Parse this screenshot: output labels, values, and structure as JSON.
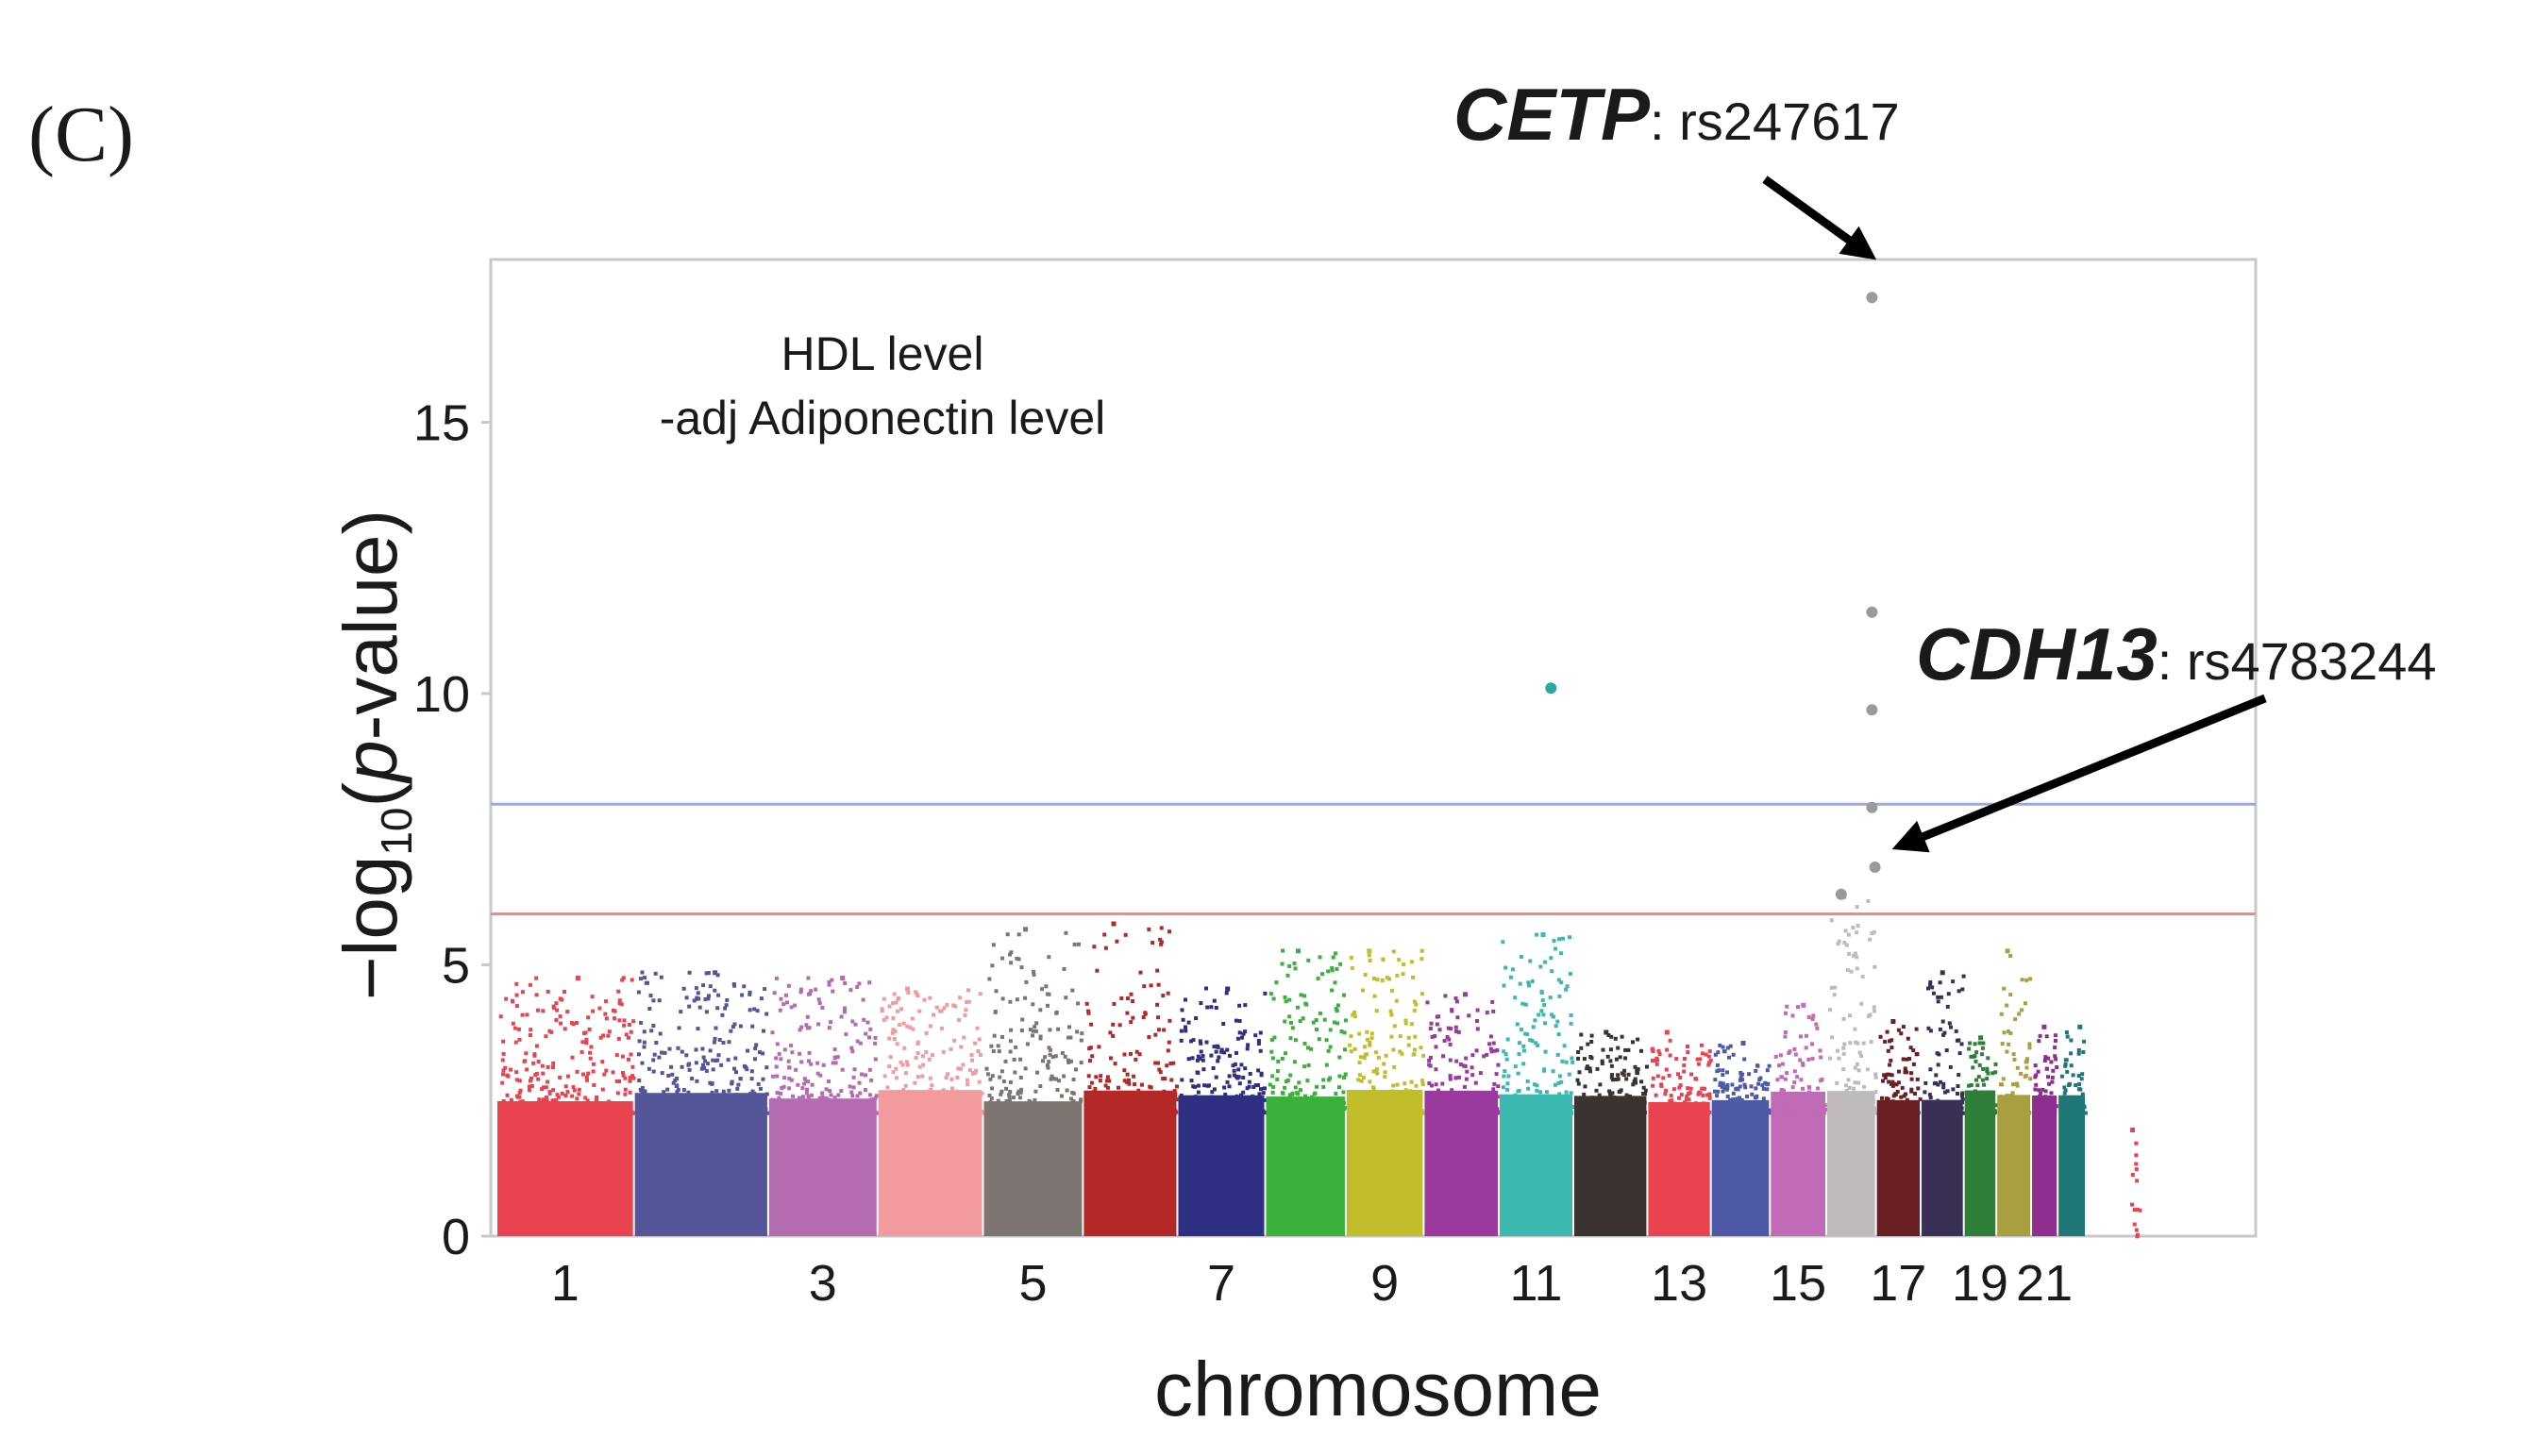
{
  "panel_label": "(C)",
  "colors": {
    "frame": "#c8c8c8",
    "threshold_genome_wide": "#9aa8e8",
    "threshold_suggestive": "#f08a8a",
    "arrow": "#000000",
    "chromosomes": [
      "#e8434f",
      "#555599",
      "#b56bb0",
      "#f39a9f",
      "#7c7571",
      "#b52828",
      "#2e2e82",
      "#3bb13b",
      "#c2bd2a",
      "#9a3a9e",
      "#3bb8b0",
      "#3a3330",
      "#e8434f",
      "#4e5aa8",
      "#c06ab8",
      "#c0bbbb",
      "#6a1f25",
      "#3a2f55",
      "#2e7f3a",
      "#a8a040",
      "#8e2f8f",
      "#1f7777"
    ]
  },
  "chart_data": {
    "type": "scatter",
    "subtype": "manhattan",
    "annotation": [
      "HDL level",
      "-adj Adiponectin level"
    ],
    "xlabel": "chromosome",
    "ylabel_parts": {
      "pre": "−log",
      "sub": "10",
      "mid": "(",
      "italic": "p",
      "post": "-value)"
    },
    "ylim": [
      0,
      18
    ],
    "yticks": [
      0,
      5,
      10,
      15
    ],
    "xtick_labels": [
      {
        "label": "1",
        "chrom": 1
      },
      {
        "label": "3",
        "chrom": 3
      },
      {
        "label": "5",
        "chrom": 5
      },
      {
        "label": "7",
        "chrom": 7
      },
      {
        "label": "9",
        "chrom": 9
      },
      {
        "label": "11",
        "chrom": 11
      },
      {
        "label": "13",
        "chrom": 13
      },
      {
        "label": "15",
        "chrom": 15
      },
      {
        "label": "17",
        "chrom": 17
      },
      {
        "label": "19",
        "chrom": 19
      },
      {
        "label": "21",
        "chrom": 21
      }
    ],
    "chromosome_lengths": [
      249,
      243,
      198,
      191,
      181,
      171,
      159,
      146,
      141,
      136,
      135,
      134,
      115,
      107,
      102,
      90,
      81,
      78,
      59,
      63,
      48,
      51
    ],
    "extra_segment": {
      "name": "X",
      "length": 155,
      "gap_before": 12,
      "max_y": 2.0
    },
    "thresholds": [
      7.96,
      5.94
    ],
    "chromosome_peaks": [
      {
        "chrom": 1,
        "max_y": 4.8
      },
      {
        "chrom": 2,
        "max_y": 4.9
      },
      {
        "chrom": 3,
        "max_y": 4.8
      },
      {
        "chrom": 4,
        "max_y": 4.6
      },
      {
        "chrom": 5,
        "max_y": 5.7
      },
      {
        "chrom": 6,
        "max_y": 5.8
      },
      {
        "chrom": 7,
        "max_y": 4.6
      },
      {
        "chrom": 8,
        "max_y": 5.3
      },
      {
        "chrom": 9,
        "max_y": 5.3
      },
      {
        "chrom": 10,
        "max_y": 4.5
      },
      {
        "chrom": 11,
        "max_y": 5.6
      },
      {
        "chrom": 12,
        "max_y": 3.8
      },
      {
        "chrom": 13,
        "max_y": 3.8
      },
      {
        "chrom": 14,
        "max_y": 3.6
      },
      {
        "chrom": 15,
        "max_y": 4.3
      },
      {
        "chrom": 16,
        "max_y": 6.3
      },
      {
        "chrom": 17,
        "max_y": 4.0
      },
      {
        "chrom": 18,
        "max_y": 4.9
      },
      {
        "chrom": 19,
        "max_y": 3.7
      },
      {
        "chrom": 20,
        "max_y": 5.3
      },
      {
        "chrom": 21,
        "max_y": 3.9
      },
      {
        "chrom": 22,
        "max_y": 3.9
      }
    ],
    "highlight_points": [
      {
        "chrom": 16,
        "pos": 0.92,
        "y": 17.3
      },
      {
        "chrom": 16,
        "pos": 0.92,
        "y": 11.5
      },
      {
        "chrom": 16,
        "pos": 0.92,
        "y": 9.7
      },
      {
        "chrom": 16,
        "pos": 0.92,
        "y": 7.9
      },
      {
        "chrom": 16,
        "pos": 0.98,
        "y": 6.8
      },
      {
        "chrom": 16,
        "pos": 0.3,
        "y": 6.3
      },
      {
        "chrom": 11,
        "pos": 0.7,
        "y": 10.1
      }
    ],
    "callouts": [
      {
        "gene": "CETP",
        "snp": ": rs247617",
        "target": {
          "chrom": 16,
          "pos": 0.92,
          "y": 18.0
        }
      },
      {
        "gene": "CDH13",
        "snp": ": rs4783244",
        "target": {
          "chrom": 16,
          "pos": 0.98,
          "y": 7.2
        }
      }
    ]
  }
}
